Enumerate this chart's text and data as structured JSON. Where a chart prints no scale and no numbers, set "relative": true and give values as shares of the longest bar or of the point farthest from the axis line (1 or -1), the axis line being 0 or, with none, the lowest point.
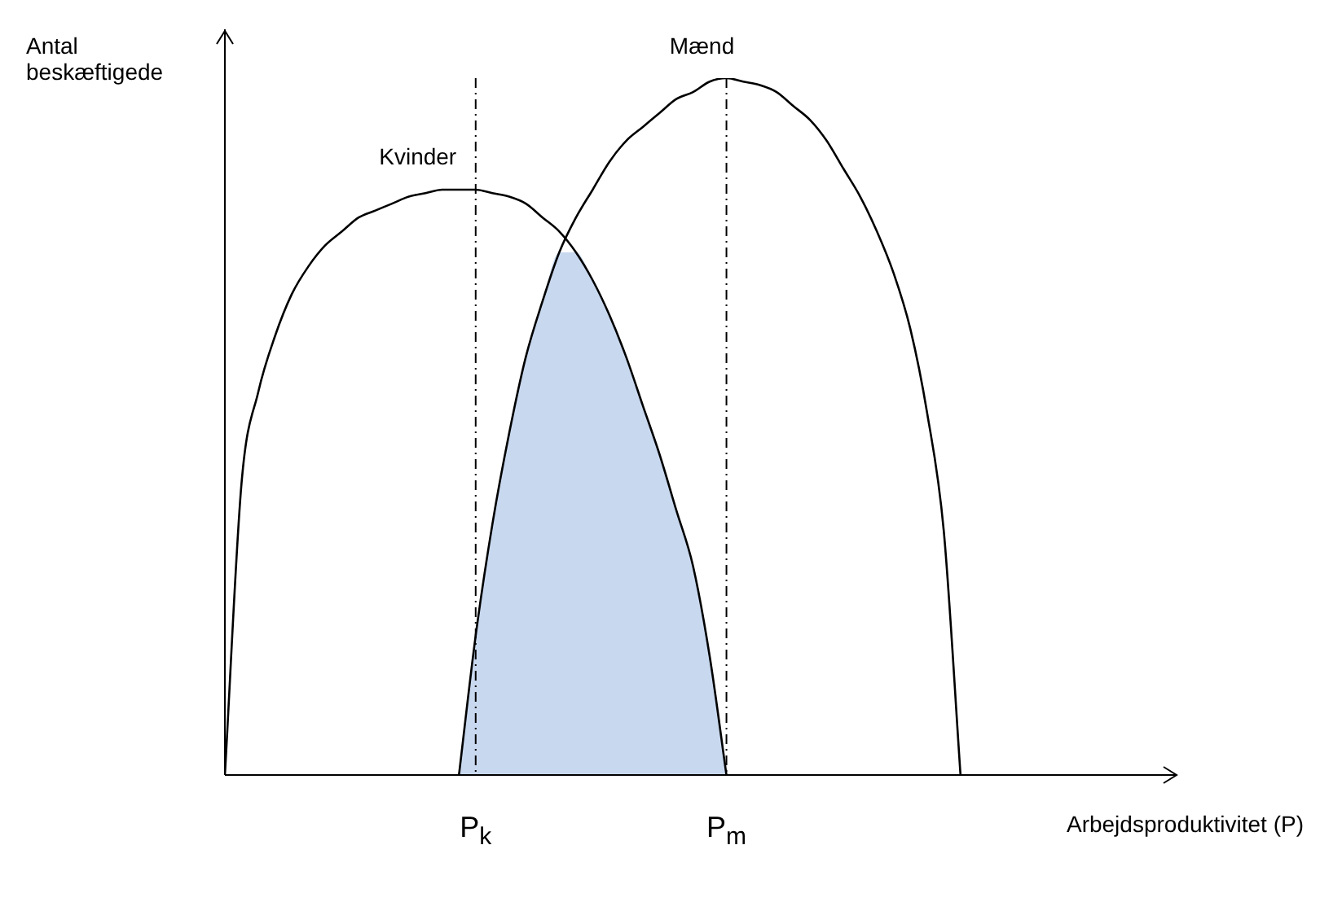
{
  "chart_data": {
    "type": "line",
    "relative": true,
    "xlabel": "Arbejdsproduktivitet (P)",
    "ylabel": "Antal beskæftigede",
    "legend": false,
    "grid": false,
    "marker": "none",
    "categories": [
      null,
      null,
      null,
      null,
      null,
      null,
      null,
      null,
      null,
      null,
      null,
      null,
      null,
      null,
      null,
      "P$_{k}$",
      null,
      null,
      null,
      null,
      null,
      null,
      null,
      null,
      null,
      null,
      null,
      null,
      null,
      null,
      "P$_{m}$",
      null,
      null,
      null,
      null,
      null,
      null,
      null,
      null,
      null,
      null,
      null,
      null,
      null,
      null,
      null,
      null,
      null,
      null,
      null,
      null,
      null,
      null,
      null,
      null
    ],
    "series": [
      {
        "name": "Kvinder",
        "color": "#000000",
        "values": [
          0,
          0.42,
          0.55,
          0.63,
          0.69,
          0.73,
          0.76,
          0.78,
          0.8,
          0.81,
          0.82,
          0.83,
          0.835,
          0.84,
          0.84,
          0.84,
          0.835,
          0.83,
          0.82,
          0.8,
          0.78,
          0.75,
          0.71,
          0.66,
          0.6,
          0.53,
          0.46,
          0.38,
          0.3,
          0.17,
          0,
          null,
          null,
          null,
          null,
          null,
          null,
          null,
          null,
          null,
          null,
          null,
          null,
          null,
          null,
          null,
          null,
          null,
          null,
          null,
          null,
          null,
          null,
          null,
          null
        ]
      },
      {
        "name": "Mænd",
        "color": "#000000",
        "values": [
          null,
          null,
          null,
          null,
          null,
          null,
          null,
          null,
          null,
          null,
          null,
          null,
          null,
          null,
          0,
          0.2,
          0.36,
          0.49,
          0.6,
          0.68,
          0.75,
          0.8,
          0.84,
          0.88,
          0.91,
          0.93,
          0.95,
          0.97,
          0.98,
          0.995,
          1,
          0.995,
          0.99,
          0.98,
          0.96,
          0.94,
          0.91,
          0.87,
          0.83,
          0.78,
          0.72,
          0.64,
          0.52,
          0.35,
          0,
          null,
          null,
          null,
          null,
          null,
          null,
          null,
          null,
          null,
          null
        ]
      },
      {
        "type": "area",
        "color": "#5b8bd0",
        "values": [
          null,
          null,
          null,
          null,
          null,
          null,
          null,
          null,
          null,
          null,
          null,
          null,
          null,
          null,
          0,
          0.2,
          0.36,
          0.49,
          0.6,
          0.68,
          0.75,
          0.75,
          0.71,
          0.66,
          0.6,
          0.53,
          0.46,
          0.38,
          0.3,
          0.17,
          0,
          null,
          null,
          null,
          null,
          null,
          null,
          null,
          null,
          null,
          null,
          null,
          null,
          null,
          null,
          null,
          null,
          null,
          null,
          null,
          null,
          null,
          null,
          null,
          null
        ]
      }
    ],
    "ref_lines": [
      {
        "axis": "x",
        "value": "P$_{k}$",
        "line_style": "dashed",
        "color": "#000000"
      },
      {
        "axis": "x",
        "value": "P$_{m}$",
        "line_style": "dashed",
        "color": "#000000"
      }
    ]
  }
}
